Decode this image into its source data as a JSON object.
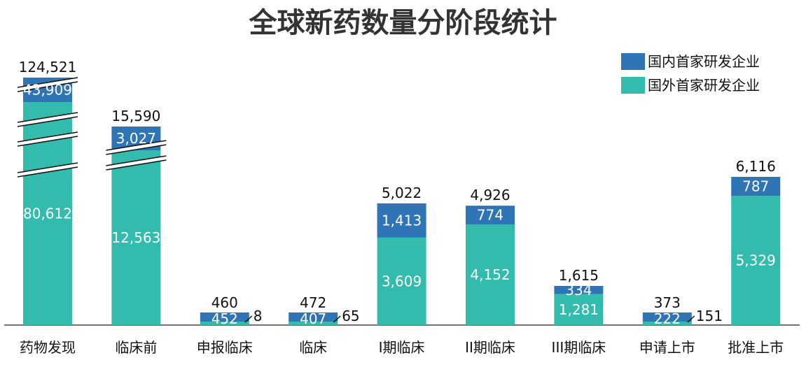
{
  "chart_data": {
    "type": "bar",
    "stacked": true,
    "title": "全球新药数量分阶段统计",
    "categories": [
      "药物发现",
      "临床前",
      "申报临床",
      "临床",
      "I期临床",
      "II期临床",
      "III期临床",
      "申请上市",
      "批准上市"
    ],
    "series": [
      {
        "name": "国外首家研发企业",
        "values": [
          80612,
          12563,
          8,
          65,
          3609,
          4152,
          1281,
          151,
          5329
        ],
        "color": "#33bbad"
      },
      {
        "name": "国内首家研发企业",
        "values": [
          43909,
          3027,
          452,
          407,
          1413,
          774,
          334,
          222,
          787
        ],
        "color": "#2f74b5"
      }
    ],
    "totals": [
      124521,
      15590,
      460,
      472,
      5022,
      4926,
      1615,
      373,
      6116
    ],
    "labels": {
      "foreign": [
        "80,612",
        "12,563",
        "8",
        "65",
        "3,609",
        "4,152",
        "1,281",
        "151",
        "5,329"
      ],
      "domestic": [
        "43,909",
        "3,027",
        "452",
        "407",
        "1,413",
        "774",
        "334",
        "222",
        "787"
      ],
      "totals": [
        "124,521",
        "15,590",
        "460",
        "472",
        "5,022",
        "4,926",
        "1,615",
        "373",
        "6,116"
      ]
    },
    "axis_break": true,
    "legend_position": "top-right",
    "grid": false
  }
}
